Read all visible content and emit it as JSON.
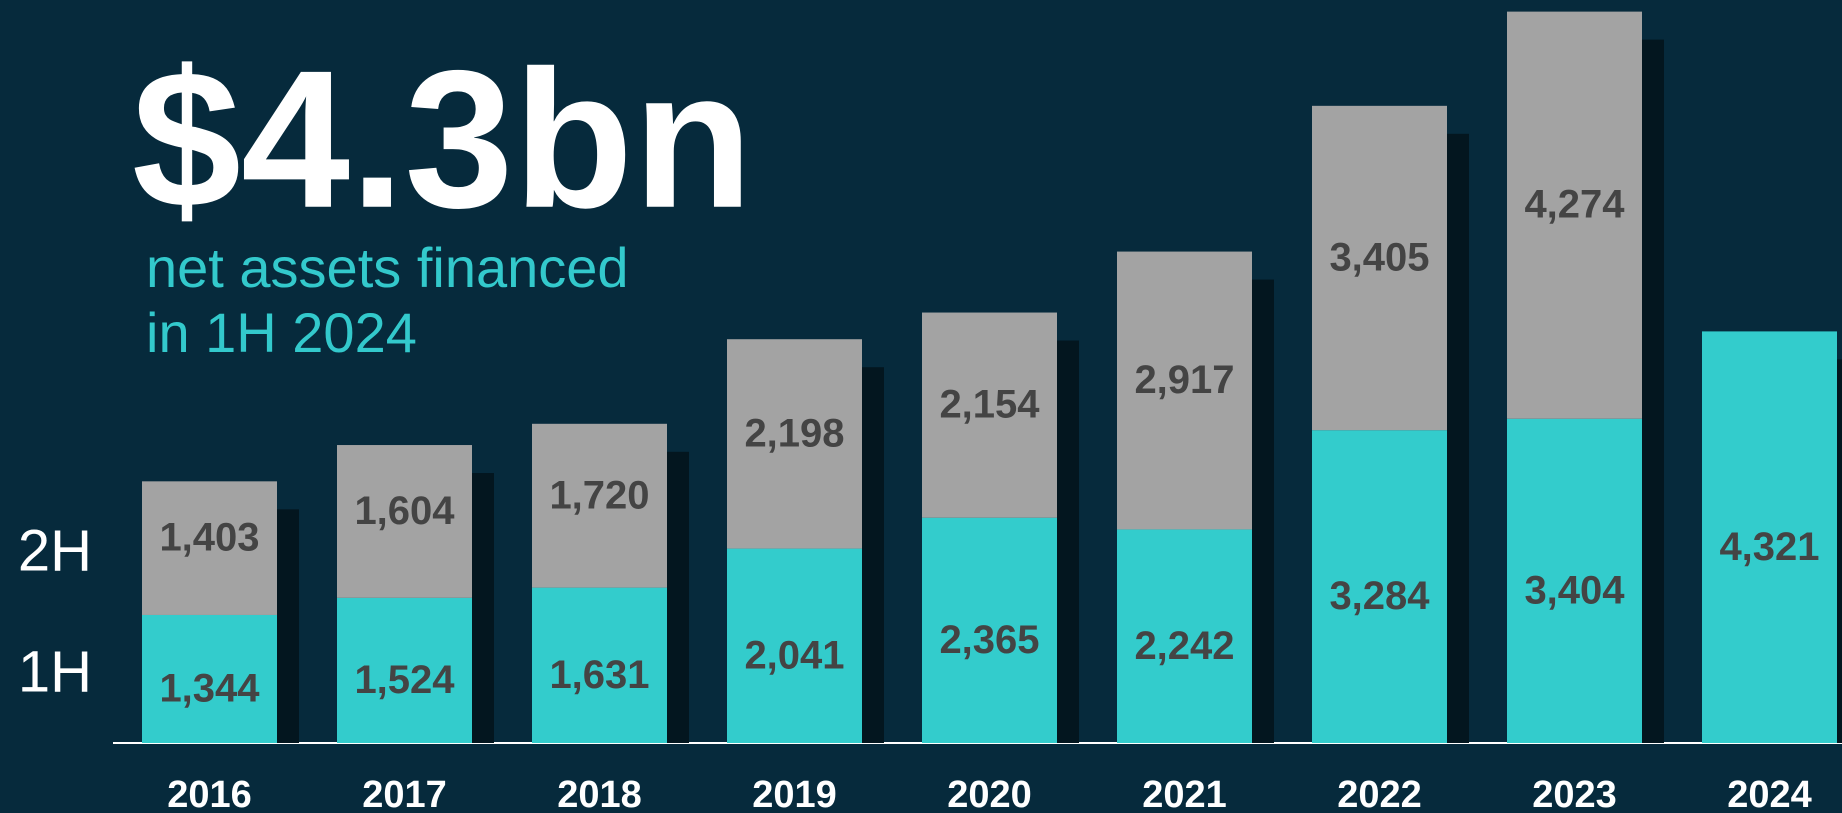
{
  "chart_data": {
    "type": "stacked_bar",
    "title": "$4.3bn",
    "subtitle": [
      "net assets financed",
      "in 1H 2024"
    ],
    "categories": [
      "2016",
      "2017",
      "2018",
      "2019",
      "2020",
      "2021",
      "2022",
      "2023",
      "2024"
    ],
    "series": [
      {
        "name": "1H",
        "color": "#33cccc",
        "values": [
          1344,
          1524,
          1631,
          2041,
          2365,
          2242,
          3284,
          3404,
          4321
        ],
        "value_labels": [
          "1,344",
          "1,524",
          "1,631",
          "2,041",
          "2,365",
          "2,242",
          "3,284",
          "3,404",
          "4,321"
        ]
      },
      {
        "name": "2H",
        "color": "#a3a3a3",
        "values": [
          1403,
          1604,
          1720,
          2198,
          2154,
          2917,
          3405,
          4274,
          null
        ],
        "value_labels": [
          "1,403",
          "1,604",
          "1,720",
          "2,198",
          "2,154",
          "2,917",
          "3,405",
          "4,274",
          null
        ]
      }
    ],
    "ylim": [
      0,
      7800
    ]
  }
}
